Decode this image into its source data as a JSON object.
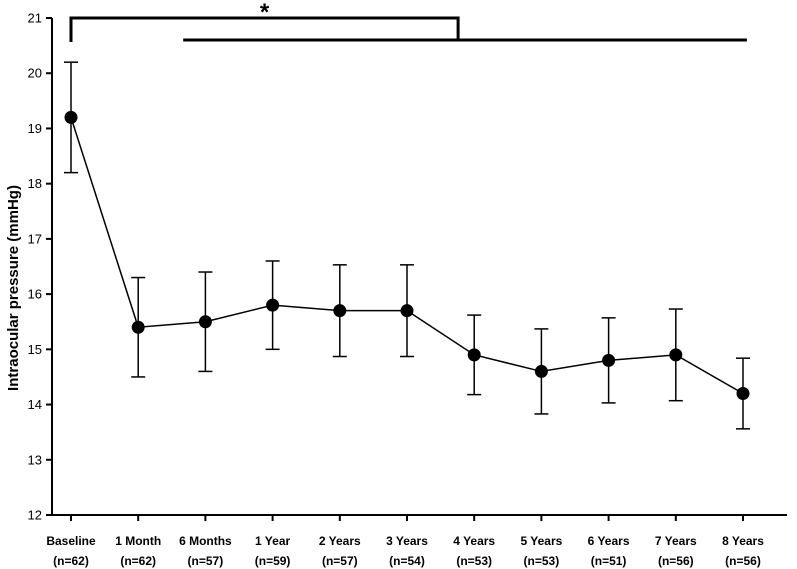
{
  "chart_data": {
    "type": "line",
    "ylabel": "Intraocular pressure (mmHg)",
    "ylim": [
      12,
      21
    ],
    "yticks": [
      12,
      13,
      14,
      15,
      16,
      17,
      18,
      19,
      20,
      21
    ],
    "categories": [
      {
        "label": "Baseline",
        "n": "(n=62)"
      },
      {
        "label": "1 Month",
        "n": "(n=62)"
      },
      {
        "label": "6 Months",
        "n": "(n=57)"
      },
      {
        "label": "1 Year",
        "n": "(n=59)"
      },
      {
        "label": "2 Years",
        "n": "(n=57)"
      },
      {
        "label": "3 Years",
        "n": "(n=54)"
      },
      {
        "label": "4 Years",
        "n": "(n=53)"
      },
      {
        "label": "5 Years",
        "n": "(n=53)"
      },
      {
        "label": "6 Years",
        "n": "(n=51)"
      },
      {
        "label": "7 Years",
        "n": "(n=56)"
      },
      {
        "label": "8 Years",
        "n": "(n=56)"
      }
    ],
    "series": [
      {
        "values": [
          19.2,
          15.4,
          15.5,
          15.8,
          15.7,
          15.7,
          14.9,
          14.6,
          14.8,
          14.9,
          14.2
        ],
        "error": [
          1.0,
          0.9,
          0.9,
          0.8,
          0.83,
          0.83,
          0.72,
          0.77,
          0.77,
          0.83,
          0.64
        ],
        "color": "#000000"
      }
    ],
    "significance": {
      "symbol": "*",
      "from_category": 0,
      "to_range": [
        1,
        10
      ]
    },
    "grid": false
  }
}
